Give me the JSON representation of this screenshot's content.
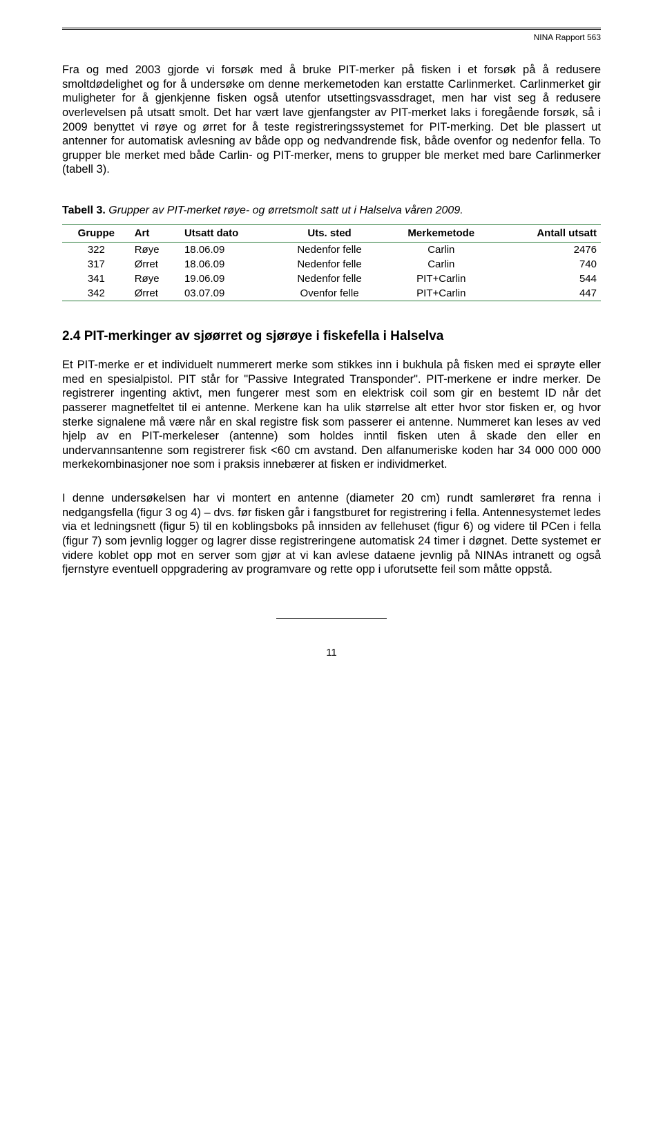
{
  "header": {
    "report": "NINA Rapport 563"
  },
  "paragraphs": {
    "p1": "Fra og med 2003 gjorde vi forsøk med å bruke PIT-merker på fisken i et forsøk på å redusere smoltdødelighet og for å undersøke om denne merkemetoden kan erstatte Carlinmerket. Carlinmerket gir muligheter for å gjenkjenne fisken også utenfor utsettingsvassdraget, men har vist seg å redusere overlevelsen på utsatt smolt. Det har vært lave gjenfangster av PIT-merket laks i foregående forsøk, så i 2009 benyttet vi røye og ørret for å teste registreringssystemet for PIT-merking. Det ble plassert ut antenner for automatisk avlesning av både opp og nedvandrende fisk, både ovenfor og nedenfor fella. To grupper ble merket med både Carlin- og PIT-merker, mens to grupper ble merket med bare Carlinmerker (tabell 3).",
    "p2": "Et PIT-merke er et individuelt nummerert merke som stikkes inn i bukhula på fisken med ei sprøyte eller med en spesialpistol. PIT står for \"Passive Integrated Transponder\". PIT-merkene er indre merker. De registrerer ingenting aktivt, men fungerer mest som en elektrisk coil som gir en bestemt ID når det passerer magnetfeltet til ei antenne. Merkene kan ha ulik størrelse alt etter hvor stor fisken er, og hvor sterke signalene må være når en skal registre fisk som passerer ei antenne. Nummeret kan leses av ved hjelp av en PIT-merkeleser (antenne) som holdes inntil fisken uten å skade den eller en undervannsantenne som registrerer fisk <60 cm avstand. Den alfanumeriske koden har 34 000 000 000 merkekombinasjoner noe som i praksis innebærer at fisken er individmerket.",
    "p3": "I denne undersøkelsen har vi montert en antenne (diameter 20 cm) rundt samlerøret fra renna i nedgangsfella (figur 3 og 4) – dvs. før fisken går i fangstburet for registrering i fella. Antennesystemet ledes via et ledningsnett (figur 5) til en koblingsboks på innsiden av fellehuset (figur 6) og videre til PCen i fella (figur 7) som jevnlig logger og lagrer disse registreringene automatisk 24 timer i døgnet. Dette systemet er videre koblet opp mot en server som gjør at vi kan avlese dataene jevnlig på NINAs intranett og også fjernstyre eventuell oppgradering av programvare og rette opp i uforutsette feil som måtte oppstå."
  },
  "table": {
    "caption_bold": "Tabell 3.",
    "caption_rest": " Grupper av PIT-merket røye- og ørretsmolt satt ut i Halselva våren 2009.",
    "headers": [
      "Gruppe",
      "Art",
      "Utsatt dato",
      "Uts. sted",
      "Merkemetode",
      "Antall utsatt"
    ],
    "rows": [
      [
        "322",
        "Røye",
        "18.06.09",
        "Nedenfor felle",
        "Carlin",
        "2476"
      ],
      [
        "317",
        "Ørret",
        "18.06.09",
        "Nedenfor felle",
        "Carlin",
        "740"
      ],
      [
        "341",
        "Røye",
        "19.06.09",
        "Nedenfor felle",
        "PIT+Carlin",
        "544"
      ],
      [
        "342",
        "Ørret",
        "03.07.09",
        "Ovenfor felle",
        "PIT+Carlin",
        "447"
      ]
    ],
    "border_color": "#2a7a3a"
  },
  "section": {
    "heading": "2.4 PIT-merkinger av sjøørret og sjørøye i fiskefella i Halselva"
  },
  "page_number": "11"
}
